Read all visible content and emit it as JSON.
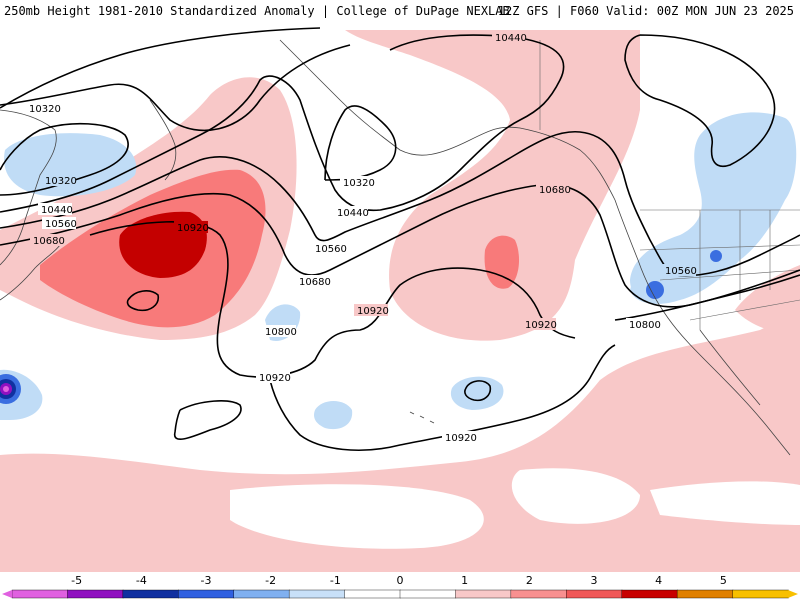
{
  "header": {
    "title": "250mb Height 1981-2010 Standardized Anomaly | College of DuPage NEXLAB",
    "run_info": "12Z GFS | F060 Valid: 00Z MON JUN 23 2025"
  },
  "contour_labels": {
    "c1": "10440",
    "c2": "10320",
    "c3": "10320",
    "c4": "10440",
    "c5": "10560",
    "c6": "10680",
    "c7": "10920",
    "c8": "10320",
    "c9": "10440",
    "c10": "10560",
    "c11": "10680",
    "c12": "10800",
    "c13": "10920",
    "c14": "10920",
    "c15": "10680",
    "c16": "10560",
    "c17": "10800",
    "c18": "10920",
    "c19": "10920"
  },
  "colorbar": {
    "ticks": [
      "-5",
      "-4",
      "-3",
      "-2",
      "-1",
      "0",
      "1",
      "2",
      "3",
      "4",
      "5"
    ],
    "colors": [
      "#e060e0",
      "#9010c0",
      "#1030a0",
      "#3060e0",
      "#80b0f0",
      "#c8e0f8",
      "#ffffff",
      "#ffffff",
      "#f8c8c8",
      "#f89090",
      "#f05858",
      "#c80000",
      "#e08000",
      "#f8c000"
    ]
  }
}
